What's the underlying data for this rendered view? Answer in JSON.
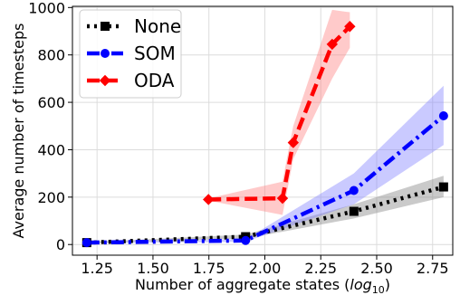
{
  "chart_data": {
    "type": "line",
    "xlabel": "Number of aggregate states",
    "xlabel_unit_base": "log",
    "xlabel_unit_sub": "10",
    "ylabel": "Average number of timesteps",
    "xlim": [
      1.14,
      2.84
    ],
    "ylim": [
      -45,
      1005
    ],
    "xticks": [
      1.25,
      1.5,
      1.75,
      2.0,
      2.25,
      2.5,
      2.75
    ],
    "xtick_labels": [
      "1.25",
      "1.50",
      "1.75",
      "2.00",
      "2.25",
      "2.50",
      "2.75"
    ],
    "yticks": [
      0,
      200,
      400,
      600,
      800,
      1000
    ],
    "ytick_labels": [
      "0",
      "200",
      "400",
      "600",
      "800",
      "1000"
    ],
    "grid": true,
    "legend_position": "top-left",
    "series": [
      {
        "name": "None",
        "color": "#000000",
        "band_color": "#808080",
        "dash": "dotted",
        "marker": "square",
        "x": [
          1.204,
          1.914,
          2.398,
          2.799
        ],
        "y": [
          8,
          33,
          140,
          243
        ],
        "lower": [
          6,
          25,
          110,
          200
        ],
        "upper": [
          10,
          42,
          170,
          290
        ]
      },
      {
        "name": "SOM",
        "color": "#0000ff",
        "band_color": "#8080ff",
        "dash": "dashdot",
        "marker": "circle",
        "x": [
          1.204,
          1.914,
          2.398,
          2.799
        ],
        "y": [
          8,
          17,
          228,
          543
        ],
        "lower": [
          6,
          12,
          170,
          420
        ],
        "upper": [
          10,
          22,
          300,
          670
        ]
      },
      {
        "name": "ODA",
        "color": "#ff0000",
        "band_color": "#ff8080",
        "dash": "dashed",
        "marker": "diamond",
        "x": [
          1.748,
          2.079,
          2.127,
          2.301,
          2.38
        ],
        "y": [
          190,
          195,
          430,
          845,
          920
        ],
        "lower": [
          185,
          125,
          360,
          700,
          830
        ],
        "upper": [
          195,
          265,
          500,
          990,
          980
        ]
      }
    ]
  }
}
